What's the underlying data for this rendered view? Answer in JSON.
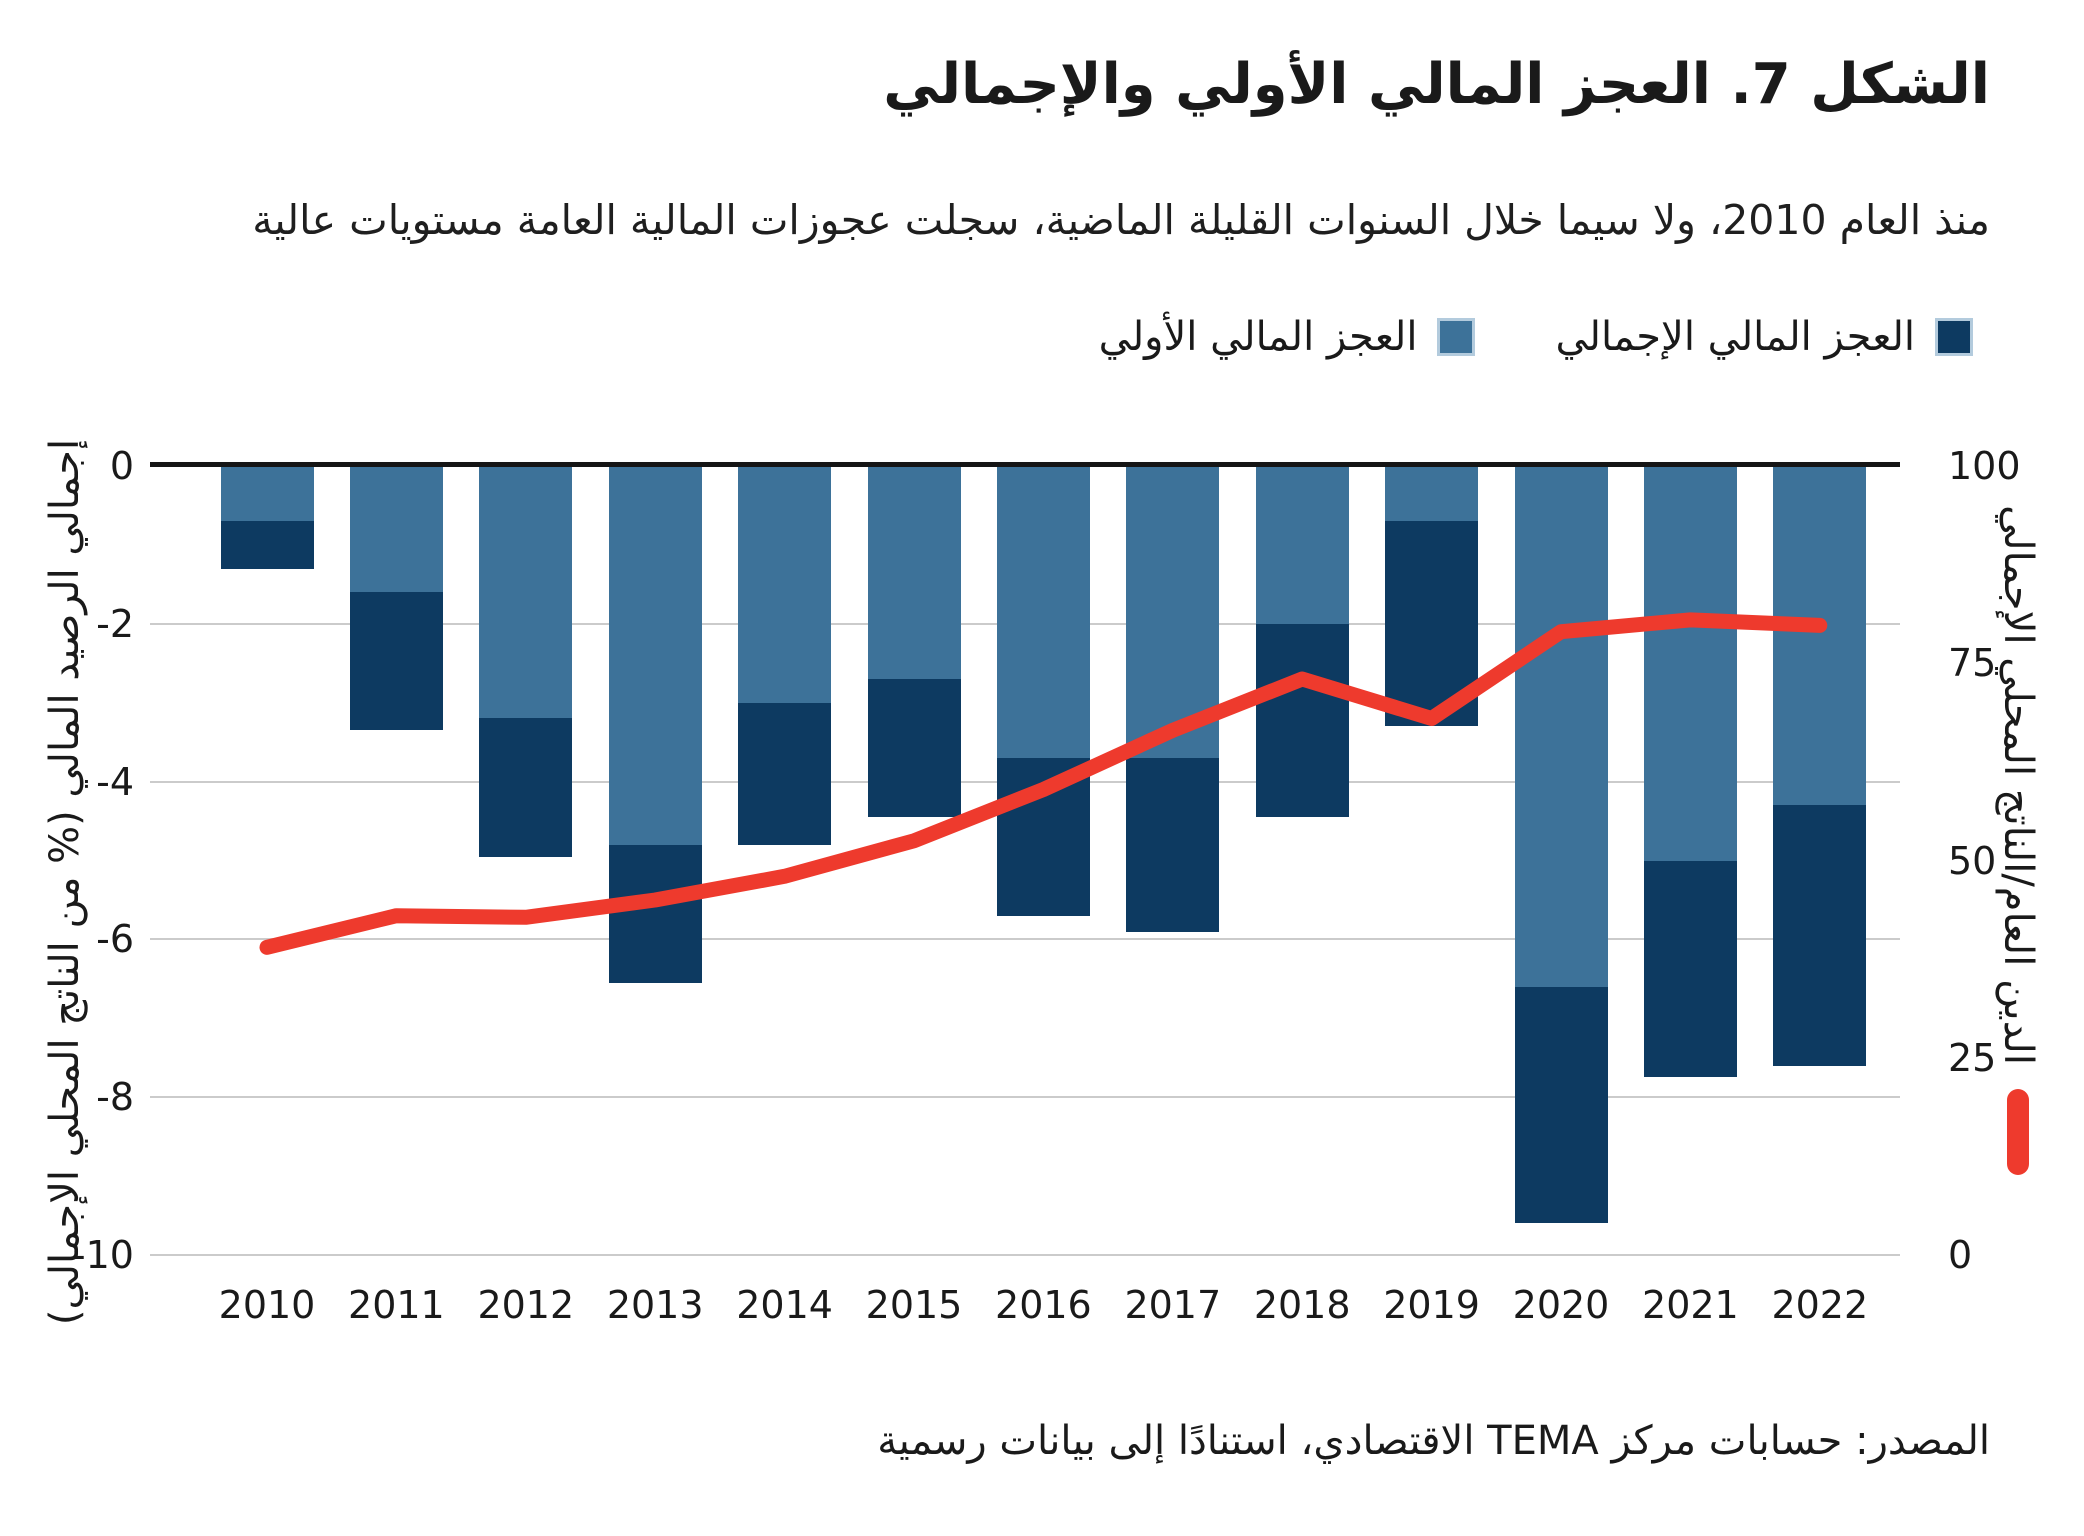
{
  "header": {
    "title": "الشكل 7. العجز المالي الأولي والإجمالي",
    "subtitle": "منذ العام 2010، ولا سيما خلال السنوات القليلة الماضية، سجلت عجوزات المالية العامة مستويات عالية"
  },
  "legend": {
    "overall_label": "العجز المالي الإجمالي",
    "primary_label": "العجز المالي الأولي"
  },
  "footer": {
    "source": "المصدر: حسابات مركز TEMA الاقتصادي، استنادًا إلى بيانات رسمية"
  },
  "colors": {
    "bar_primary": "#3d7299",
    "bar_overall": "#0d3a61",
    "debt_line": "#ee3a2d",
    "gridline": "#cbcbcb",
    "zero_line": "#151515",
    "text": "#1a1a1a"
  },
  "chart_data": {
    "type": "bar",
    "title": "الشكل 7. العجز المالي الأولي والإجمالي",
    "categories": [
      "2010",
      "2011",
      "2012",
      "2013",
      "2014",
      "2015",
      "2016",
      "2017",
      "2018",
      "2019",
      "2020",
      "2021",
      "2022"
    ],
    "series": [
      {
        "name": "العجز المالي الأولي",
        "type": "bar",
        "axis": "left",
        "color": "#3d7299",
        "values": [
          -0.7,
          -1.6,
          -3.2,
          -4.8,
          -3.0,
          -2.7,
          -3.7,
          -3.7,
          -2.0,
          -0.7,
          -6.6,
          -5.0,
          -4.3
        ]
      },
      {
        "name": "العجز المالي الإجمالي",
        "type": "bar",
        "axis": "left",
        "color": "#0d3a61",
        "values": [
          -1.3,
          -3.35,
          -4.95,
          -6.55,
          -4.8,
          -4.45,
          -5.7,
          -5.9,
          -4.45,
          -3.3,
          -9.6,
          -7.75,
          -7.6
        ]
      },
      {
        "name": "الدين العام/الناتج المحلي الإجمالي",
        "type": "line",
        "axis": "right",
        "color": "#ee3a2d",
        "values": [
          39,
          43,
          42.8,
          45,
          48,
          52.5,
          59,
          66.5,
          73,
          68,
          79,
          80.5,
          79.8
        ]
      }
    ],
    "stacked_note": "bars stacked: light segment 0→primary, dark segment primary→overall",
    "left_axis": {
      "label": "إجمالي الرصيد المالي (% من الناتج المحلي الإجمالي)",
      "ticks": [
        0,
        -2,
        -4,
        -6,
        -8,
        -10
      ],
      "range": [
        0,
        -10
      ],
      "grid": true
    },
    "right_axis": {
      "label": "الدين العام/الناتج المحلي الإجمالي",
      "ticks": [
        100,
        75,
        50,
        25,
        0
      ],
      "range": [
        100,
        0
      ],
      "grid": false
    }
  }
}
